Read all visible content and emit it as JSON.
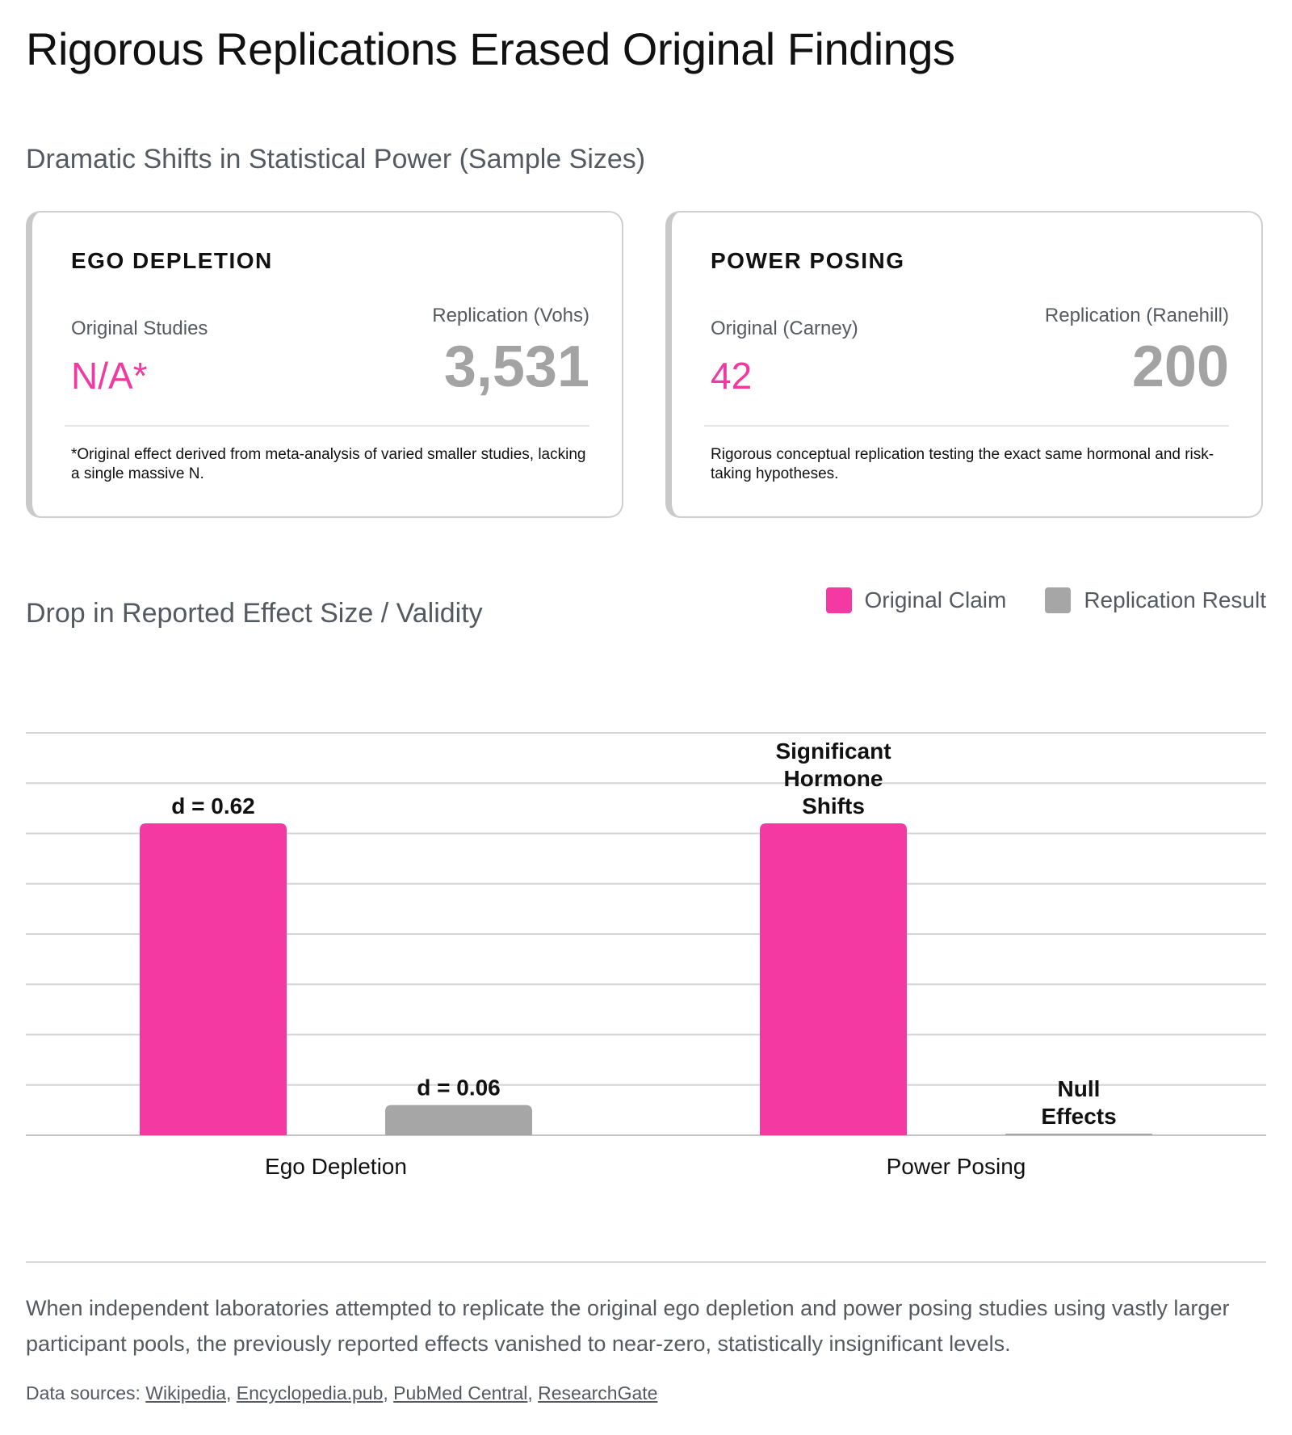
{
  "title": "Rigorous Replications Erased Original Findings",
  "sample_section_title": "Dramatic Shifts in Statistical Power (Sample Sizes)",
  "cards": [
    {
      "title": "EGO DEPLETION",
      "original_label": "Original Studies",
      "original_value": "N/A*",
      "replication_label": "Replication (Vohs)",
      "replication_value": "3,531",
      "note": "*Original effect derived from meta-analysis of varied smaller studies, lacking a single massive N."
    },
    {
      "title": "POWER POSING",
      "original_label": "Original (Carney)",
      "original_value": "42",
      "replication_label": "Replication (Ranehill)",
      "replication_value": "200",
      "note": "Rigorous conceptual replication testing the exact same hormonal and risk-taking hypotheses."
    }
  ],
  "colors": {
    "original": "#f43aa2",
    "replication": "#a6a6a6",
    "accent_text": "#f03aa1"
  },
  "chart_data": {
    "type": "bar",
    "title": "Drop in Reported Effect Size / Validity",
    "categories": [
      "Ego Depletion",
      "Power Posing"
    ],
    "series": [
      {
        "name": "Original Claim",
        "values": [
          0.62,
          0.62
        ],
        "labels": [
          "d = 0.62",
          "Significant\nHormone\nShifts"
        ]
      },
      {
        "name": "Replication Result",
        "values": [
          0.06,
          0.0
        ],
        "labels": [
          "d = 0.06",
          "Null\nEffects"
        ]
      }
    ],
    "ylim": [
      0,
      0.8
    ],
    "grid": true,
    "legend": "top-right",
    "xlabel": "",
    "ylabel": ""
  },
  "summary": "When independent laboratories attempted to replicate the original ego depletion and power posing studies using vastly larger participant pools, the previously reported effects vanished to near-zero, statistically insignificant levels.",
  "sources_prefix": "Data sources: ",
  "sources": [
    "Wikipedia",
    "Encyclopedia.pub",
    "PubMed Central",
    "ResearchGate"
  ]
}
